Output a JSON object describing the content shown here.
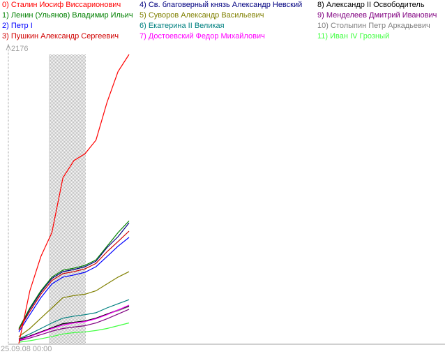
{
  "chart_data": {
    "type": "line",
    "title": "",
    "ylim": [
      0,
      2176
    ],
    "y_max_label": "2176",
    "x_start_label": "25.09.08 00:00",
    "grid": false,
    "legend_placement": "top",
    "highlight_band": true,
    "x": [
      0,
      1,
      2,
      3,
      4,
      5,
      6,
      7,
      8,
      9,
      10
    ],
    "series": [
      {
        "name": "0) Сталин Иосиф Виссарионович",
        "color": "#ff0000",
        "values": [
          0,
          397,
          655,
          835,
          1248,
          1377,
          1428,
          1531,
          1815,
          2047,
          2176
        ]
      },
      {
        "name": "1) Ленин (Ульянов) Владимир Ильич",
        "color": "#008000",
        "values": [
          113,
          268,
          397,
          500,
          552,
          567,
          588,
          629,
          732,
          835,
          923
        ]
      },
      {
        "name": "2) Петр I",
        "color": "#0000ff",
        "values": [
          88,
          217,
          345,
          449,
          500,
          516,
          536,
          578,
          655,
          732,
          799
        ]
      },
      {
        "name": "3) Пушкин Александр Сергеевич",
        "color": "#d00000",
        "values": [
          103,
          242,
          371,
          474,
          526,
          541,
          562,
          603,
          691,
          768,
          846
        ]
      },
      {
        "name": "4) Св. благоверный князь Александр Невский",
        "color": "#000080",
        "values": [
          103,
          258,
          387,
          490,
          541,
          557,
          578,
          619,
          722,
          804,
          908
        ]
      },
      {
        "name": "5) Суворов Александр Васильевич",
        "color": "#808000",
        "values": [
          52,
          113,
          191,
          268,
          345,
          361,
          371,
          397,
          449,
          500,
          541
        ]
      },
      {
        "name": "6) Екатерина II Великая",
        "color": "#008080",
        "values": [
          36,
          72,
          113,
          155,
          191,
          206,
          217,
          232,
          268,
          299,
          330
        ]
      },
      {
        "name": "7) Достоевский Федор Михайлович",
        "color": "#ff00ff",
        "values": [
          26,
          52,
          83,
          113,
          139,
          155,
          165,
          186,
          217,
          253,
          289
        ]
      },
      {
        "name": "8) Александр II Освободитель",
        "color": "#000000",
        "values": [
          31,
          57,
          88,
          119,
          150,
          160,
          170,
          191,
          222,
          253,
          284
        ]
      },
      {
        "name": "9) Менделеев Дмитрий Иванович",
        "color": "#800080",
        "values": [
          21,
          41,
          67,
          93,
          113,
          124,
          134,
          155,
          186,
          222,
          258
        ]
      },
      {
        "name": "10) Столыпин Петр Аркадьевич",
        "color": "#808080",
        "values": [
          31,
          57,
          88,
          119,
          144,
          160,
          170,
          191,
          222,
          247,
          278
        ]
      },
      {
        "name": "11) Иван IV Грозный",
        "color": "#40ff40",
        "values": [
          10,
          21,
          36,
          52,
          72,
          82,
          88,
          98,
          113,
          134,
          155
        ]
      }
    ]
  }
}
